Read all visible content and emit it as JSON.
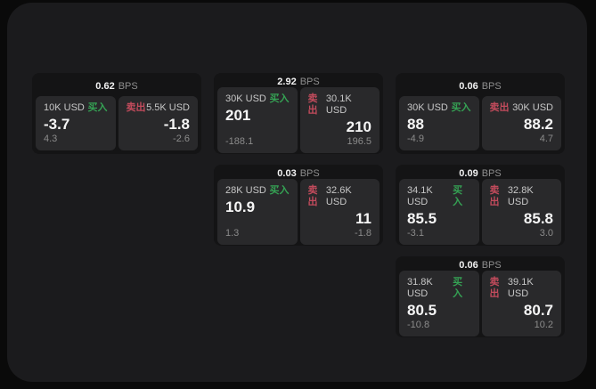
{
  "labels": {
    "bps": "BPS",
    "buy": "买入",
    "sell": "卖出"
  },
  "colors": {
    "buy": "#35a254",
    "sell": "#c24b5c",
    "panel": "#1b1b1d",
    "card": "#141415",
    "tile": "#29292b"
  },
  "cards": [
    {
      "bps": "0.62",
      "buy": {
        "notional": "10K USD",
        "price": "-3.7",
        "delta": "4.3"
      },
      "sell": {
        "notional": "5.5K USD",
        "price": "-1.8",
        "delta": "-2.6"
      }
    },
    {
      "bps": "2.92",
      "buy": {
        "notional": "30K USD",
        "price": "201",
        "delta": "-188.1"
      },
      "sell": {
        "notional": "30.1K USD",
        "price": "210",
        "delta": "196.5"
      }
    },
    {
      "bps": "0.06",
      "buy": {
        "notional": "30K USD",
        "price": "88",
        "delta": "-4.9"
      },
      "sell": {
        "notional": "30K USD",
        "price": "88.2",
        "delta": "4.7"
      }
    },
    {
      "bps": "0.03",
      "buy": {
        "notional": "28K USD",
        "price": "10.9",
        "delta": "1.3"
      },
      "sell": {
        "notional": "32.6K USD",
        "price": "11",
        "delta": "-1.8"
      }
    },
    {
      "bps": "0.09",
      "buy": {
        "notional": "34.1K USD",
        "price": "85.5",
        "delta": "-3.1"
      },
      "sell": {
        "notional": "32.8K USD",
        "price": "85.8",
        "delta": "3.0"
      }
    },
    {
      "bps": "0.06",
      "buy": {
        "notional": "31.8K USD",
        "price": "80.5",
        "delta": "-10.8"
      },
      "sell": {
        "notional": "39.1K USD",
        "price": "80.7",
        "delta": "10.2"
      }
    }
  ]
}
